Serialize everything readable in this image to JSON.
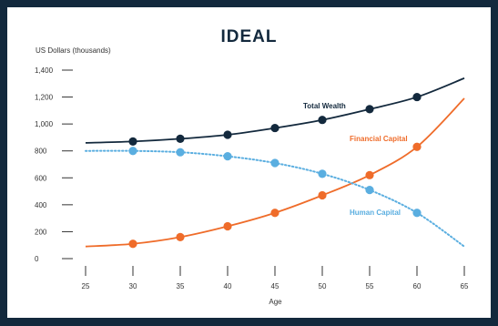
{
  "chart_data": {
    "type": "line",
    "title": "IDEAL",
    "ylabel": "US Dollars (thousands)",
    "xlabel": "Age",
    "xlim": [
      25,
      65
    ],
    "ylim": [
      0,
      1400
    ],
    "x_ticks": [
      25,
      30,
      35,
      40,
      45,
      50,
      55,
      60,
      65
    ],
    "y_ticks": [
      0,
      200,
      400,
      600,
      800,
      1000,
      1200,
      1400
    ],
    "y_tick_labels": [
      "0",
      "200",
      "400",
      "600",
      "800",
      "1,000",
      "1,200",
      "1,400"
    ],
    "grid": false,
    "series": [
      {
        "name": "Total Wealth",
        "color": "#13293d",
        "style": "solid",
        "x": [
          25,
          30,
          35,
          40,
          45,
          50,
          55,
          60,
          65
        ],
        "values": [
          860,
          870,
          890,
          920,
          970,
          1030,
          1110,
          1200,
          1340
        ],
        "markers_x": [
          30,
          35,
          40,
          45,
          50,
          55,
          60
        ],
        "markers_y": [
          870,
          890,
          920,
          970,
          1030,
          1110,
          1200
        ]
      },
      {
        "name": "Financial Capital",
        "color": "#ef6c2a",
        "style": "solid",
        "x": [
          25,
          30,
          35,
          40,
          45,
          50,
          55,
          60,
          65
        ],
        "values": [
          90,
          110,
          160,
          240,
          340,
          470,
          620,
          830,
          1190
        ],
        "markers_x": [
          30,
          35,
          40,
          45,
          50,
          55,
          60
        ],
        "markers_y": [
          110,
          160,
          240,
          340,
          470,
          620,
          830
        ]
      },
      {
        "name": "Human Capital",
        "color": "#5aaee0",
        "style": "dotted",
        "x": [
          25,
          30,
          35,
          40,
          45,
          50,
          55,
          60,
          65
        ],
        "values": [
          800,
          800,
          790,
          760,
          710,
          630,
          510,
          340,
          90
        ],
        "markers_x": [
          30,
          35,
          40,
          45,
          50,
          55,
          60
        ],
        "markers_y": [
          800,
          790,
          760,
          710,
          630,
          510,
          340
        ]
      }
    ]
  }
}
